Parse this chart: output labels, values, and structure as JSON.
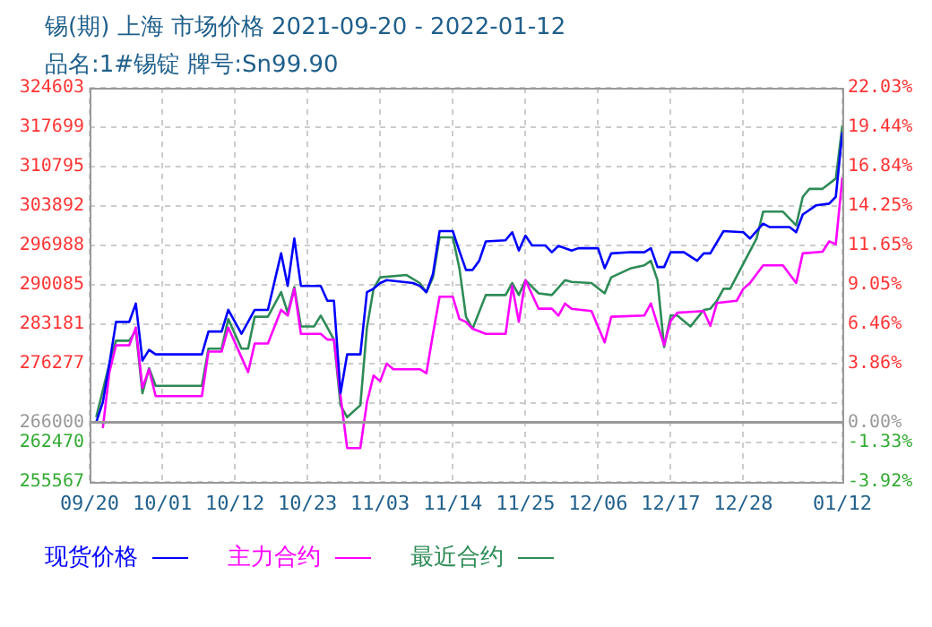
{
  "chart_data": {
    "type": "line",
    "title": "锡(期) 上海 市场价格 2021-09-20 - 2022-01-12",
    "subtitle": "品名:1#锡锭 牌号:Sn99.90",
    "xlim": [
      "2021-09-20",
      "2022-01-12"
    ],
    "xticks": [
      {
        "value": "2021-09-20",
        "label": "09/20"
      },
      {
        "value": "2021-10-01",
        "label": "10/01"
      },
      {
        "value": "2021-10-12",
        "label": "10/12"
      },
      {
        "value": "2021-10-23",
        "label": "10/23"
      },
      {
        "value": "2021-11-03",
        "label": "11/03"
      },
      {
        "value": "2021-11-14",
        "label": "11/14"
      },
      {
        "value": "2021-11-25",
        "label": "11/25"
      },
      {
        "value": "2021-12-06",
        "label": "12/06"
      },
      {
        "value": "2021-12-17",
        "label": "12/17"
      },
      {
        "value": "2021-12-28",
        "label": "12/28"
      },
      {
        "value": "2022-01-12",
        "label": "01/12"
      }
    ],
    "ylim": [
      255567,
      324603
    ],
    "yticks": [
      255567,
      262470,
      266000,
      {
        "value": 269373,
        "label": null
      },
      276277,
      283181,
      290085,
      296988,
      303892,
      310795,
      317699,
      324603
    ],
    "y2lim": [
      -3.92,
      22.03
    ],
    "y2ticks": [
      {
        "value": -3.92,
        "label": "-3.92%"
      },
      {
        "value": -1.33,
        "label": "-1.33%"
      },
      {
        "value": 0,
        "label": "0.00%"
      },
      {
        "value": 1.27,
        "label": null
      },
      {
        "value": 3.86,
        "label": "3.86%"
      },
      {
        "value": 6.46,
        "label": "6.46%"
      },
      {
        "value": 9.05,
        "label": "9.05%"
      },
      {
        "value": 11.65,
        "label": "11.65%"
      },
      {
        "value": 14.25,
        "label": "14.25%"
      },
      {
        "value": 16.84,
        "label": "16.84%"
      },
      {
        "value": 19.44,
        "label": "19.44%"
      },
      {
        "value": 22.03,
        "label": "22.03%"
      }
    ],
    "ref_lines": [
      {
        "axis": "y",
        "value": 266000,
        "color": "#999999"
      }
    ],
    "grid": true,
    "legend": "bottom",
    "series": [
      {
        "name": "现货价格",
        "color": "#0000ff",
        "x": [
          "2021-09-20",
          "2021-09-21",
          "2021-09-22",
          "2021-09-23",
          "2021-09-24",
          "2021-09-26",
          "2021-09-27",
          "2021-09-28",
          "2021-09-29",
          "2021-09-30",
          "2021-10-07",
          "2021-10-08",
          "2021-10-10",
          "2021-10-11",
          "2021-10-13",
          "2021-10-14",
          "2021-10-15",
          "2021-10-17",
          "2021-10-19",
          "2021-10-20",
          "2021-10-21",
          "2021-10-22",
          "2021-10-25",
          "2021-10-26",
          "2021-10-27",
          "2021-10-28",
          "2021-10-29",
          "2021-10-31",
          "2021-11-01",
          "2021-11-02",
          "2021-11-03",
          "2021-11-04",
          "2021-11-08",
          "2021-11-09",
          "2021-11-10",
          "2021-11-11",
          "2021-11-12",
          "2021-11-14",
          "2021-11-15",
          "2021-11-16",
          "2021-11-17",
          "2021-11-18",
          "2021-11-19",
          "2021-11-22",
          "2021-11-23",
          "2021-11-24",
          "2021-11-25",
          "2021-11-26",
          "2021-11-28",
          "2021-11-29",
          "2021-11-30",
          "2021-12-02",
          "2021-12-03",
          "2021-12-06",
          "2021-12-07",
          "2021-12-08",
          "2021-12-11",
          "2021-12-13",
          "2021-12-14",
          "2021-12-15",
          "2021-12-16",
          "2021-12-17",
          "2021-12-19",
          "2021-12-21",
          "2021-12-22",
          "2021-12-23",
          "2021-12-25",
          "2021-12-28",
          "2021-12-29",
          "2021-12-31",
          "2022-01-01",
          "2022-01-04",
          "2022-01-05",
          "2022-01-06",
          "2022-01-08",
          "2022-01-10",
          "2022-01-11",
          "2022-01-12"
        ],
        "values": [
          266000,
          266000,
          269500,
          276300,
          283600,
          283600,
          286800,
          276800,
          278700,
          277900,
          277900,
          281900,
          281900,
          285700,
          281500,
          283600,
          285700,
          285700,
          295600,
          289900,
          298200,
          289900,
          289900,
          287300,
          287300,
          271100,
          277900,
          277900,
          288800,
          289400,
          290400,
          290900,
          290400,
          289900,
          288800,
          292000,
          299500,
          299500,
          296000,
          292700,
          292700,
          294300,
          297700,
          297900,
          299300,
          296100,
          298700,
          297000,
          297000,
          295800,
          296900,
          296100,
          296500,
          296500,
          293000,
          295600,
          295800,
          295800,
          296500,
          293200,
          293200,
          295800,
          295800,
          294300,
          295600,
          295600,
          299500,
          299300,
          298200,
          300800,
          300200,
          300200,
          299300,
          302400,
          304000,
          304300,
          305500,
          316800
        ]
      },
      {
        "name": "主力合约",
        "color": "#ff00ff",
        "x": [
          "2021-09-22",
          "2021-09-23",
          "2021-09-24",
          "2021-09-26",
          "2021-09-27",
          "2021-09-28",
          "2021-09-29",
          "2021-09-30",
          "2021-10-07",
          "2021-10-08",
          "2021-10-10",
          "2021-10-11",
          "2021-10-13",
          "2021-10-14",
          "2021-10-15",
          "2021-10-17",
          "2021-10-19",
          "2021-10-20",
          "2021-10-21",
          "2021-10-22",
          "2021-10-25",
          "2021-10-26",
          "2021-10-27",
          "2021-10-28",
          "2021-10-29",
          "2021-10-31",
          "2021-11-01",
          "2021-11-02",
          "2021-11-03",
          "2021-11-04",
          "2021-11-05",
          "2021-11-09",
          "2021-11-10",
          "2021-11-11",
          "2021-11-12",
          "2021-11-14",
          "2021-11-15",
          "2021-11-16",
          "2021-11-17",
          "2021-11-19",
          "2021-11-22",
          "2021-11-23",
          "2021-11-24",
          "2021-11-25",
          "2021-11-27",
          "2021-11-29",
          "2021-11-30",
          "2021-12-01",
          "2021-12-02",
          "2021-12-05",
          "2021-12-07",
          "2021-12-08",
          "2021-12-13",
          "2021-12-14",
          "2021-12-16",
          "2021-12-17",
          "2021-12-18",
          "2021-12-22",
          "2021-12-23",
          "2021-12-24",
          "2021-12-27",
          "2021-12-28",
          "2021-12-29",
          "2021-12-31",
          "2022-01-03",
          "2022-01-05",
          "2022-01-06",
          "2022-01-09",
          "2022-01-10",
          "2022-01-11",
          "2022-01-12"
        ],
        "values": [
          265000,
          274800,
          279500,
          279500,
          282600,
          272000,
          275300,
          270600,
          270600,
          278400,
          278400,
          282600,
          277400,
          274800,
          279800,
          279800,
          285700,
          284700,
          289400,
          281500,
          281500,
          280500,
          280500,
          270600,
          261500,
          261500,
          269500,
          274200,
          273200,
          276300,
          275300,
          275300,
          274600,
          281500,
          288000,
          288000,
          284100,
          283600,
          282400,
          281500,
          281500,
          289900,
          283600,
          290900,
          285900,
          285900,
          284700,
          286800,
          285900,
          285500,
          280000,
          284500,
          284700,
          286800,
          279500,
          283800,
          285200,
          285500,
          282900,
          286900,
          287300,
          289400,
          290400,
          293500,
          293500,
          290400,
          295600,
          295900,
          297700,
          297200,
          308900
        ]
      },
      {
        "name": "最近合约",
        "color": "#2e8b57",
        "x": [
          "2021-09-21",
          "2021-09-23",
          "2021-09-24",
          "2021-09-26",
          "2021-09-27",
          "2021-09-28",
          "2021-09-29",
          "2021-09-30",
          "2021-10-07",
          "2021-10-08",
          "2021-10-10",
          "2021-10-11",
          "2021-10-13",
          "2021-10-14",
          "2021-10-15",
          "2021-10-17",
          "2021-10-19",
          "2021-10-20",
          "2021-10-21",
          "2021-10-22",
          "2021-10-24",
          "2021-10-25",
          "2021-10-26",
          "2021-10-27",
          "2021-10-28",
          "2021-10-29",
          "2021-10-31",
          "2021-11-01",
          "2021-11-02",
          "2021-11-03",
          "2021-11-07",
          "2021-11-09",
          "2021-11-10",
          "2021-11-11",
          "2021-11-12",
          "2021-11-14",
          "2021-11-15",
          "2021-11-16",
          "2021-11-17",
          "2021-11-19",
          "2021-11-22",
          "2021-11-23",
          "2021-11-24",
          "2021-11-25",
          "2021-11-27",
          "2021-11-29",
          "2021-12-01",
          "2021-12-02",
          "2021-12-05",
          "2021-12-07",
          "2021-12-08",
          "2021-12-11",
          "2021-12-13",
          "2021-12-14",
          "2021-12-15",
          "2021-12-16",
          "2021-12-17",
          "2021-12-18",
          "2021-12-20",
          "2021-12-22",
          "2021-12-23",
          "2021-12-24",
          "2021-12-25",
          "2021-12-26",
          "2021-12-28",
          "2021-12-30",
          "2021-12-31",
          "2022-01-03",
          "2022-01-05",
          "2022-01-06",
          "2022-01-07",
          "2022-01-09",
          "2022-01-11",
          "2022-01-12"
        ],
        "values": [
          266900,
          276300,
          280300,
          280300,
          282100,
          271100,
          275500,
          272400,
          272400,
          278900,
          278900,
          284100,
          278900,
          278900,
          284500,
          284500,
          288800,
          285200,
          289700,
          282800,
          282800,
          284700,
          282600,
          280500,
          269000,
          266900,
          269000,
          282600,
          289400,
          291400,
          291800,
          290400,
          288800,
          291400,
          298400,
          298400,
          293000,
          284500,
          282400,
          288300,
          288300,
          290400,
          288300,
          290900,
          288600,
          288300,
          290900,
          290600,
          290400,
          288600,
          291400,
          293000,
          293500,
          294300,
          290900,
          279200,
          284700,
          284700,
          282800,
          285700,
          285900,
          287300,
          289400,
          289400,
          293800,
          298200,
          302900,
          302900,
          300500,
          305500,
          306900,
          306900,
          308700,
          318000
        ]
      }
    ]
  }
}
